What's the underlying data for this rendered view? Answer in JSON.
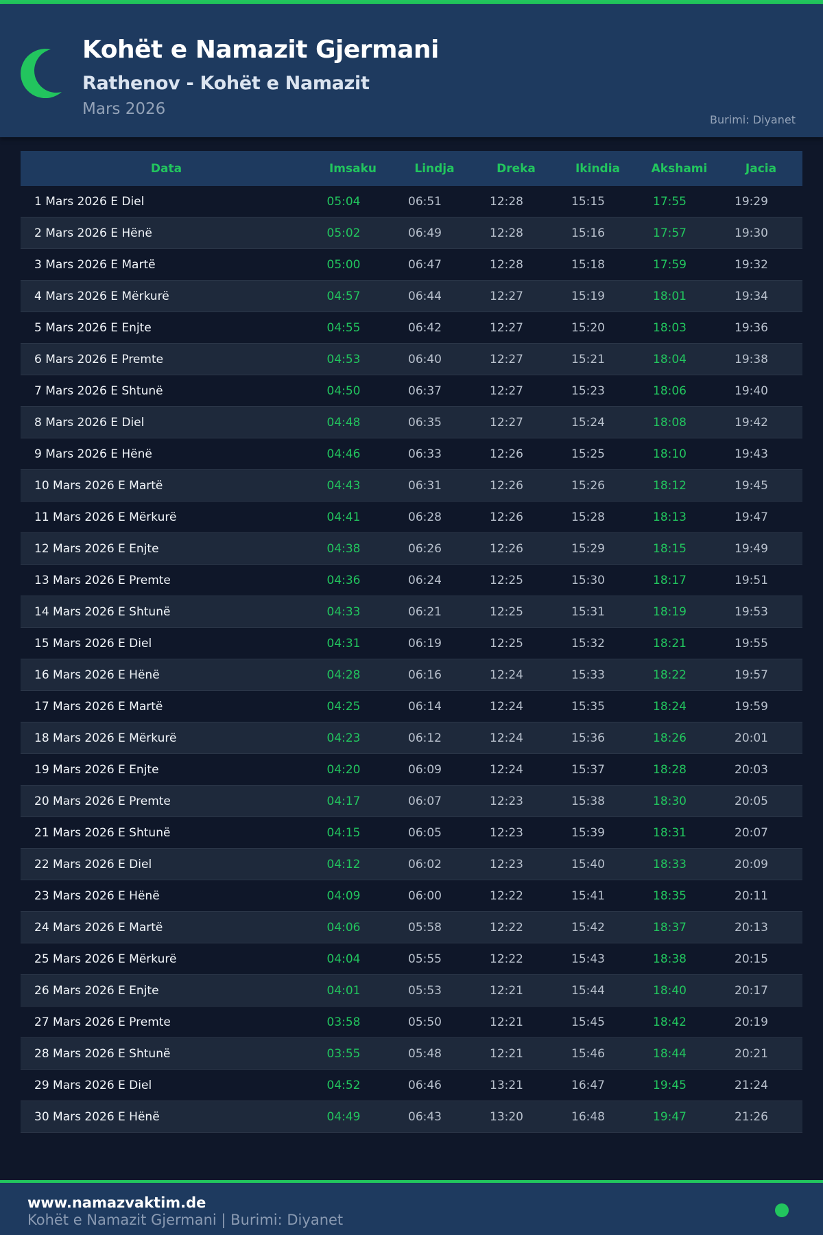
{
  "header": {
    "title": "Kohët e Namazit Gjermani",
    "subtitle": "Rathenov - Kohët e Namazit",
    "month": "Mars 2026",
    "source": "Burimi: Diyanet",
    "icon": "crescent-moon-icon"
  },
  "colors": {
    "accent": "#22c55e",
    "header_bg": "#1e3a5f",
    "page_bg": "#0f1729"
  },
  "table": {
    "columns": [
      "Data",
      "Imsaku",
      "Lindja",
      "Dreka",
      "Ikindia",
      "Akshami",
      "Jacia"
    ],
    "rows": [
      [
        "1 Mars 2026 E Diel",
        "05:04",
        "06:51",
        "12:28",
        "15:15",
        "17:55",
        "19:29"
      ],
      [
        "2 Mars 2026 E Hënë",
        "05:02",
        "06:49",
        "12:28",
        "15:16",
        "17:57",
        "19:30"
      ],
      [
        "3 Mars 2026 E Martë",
        "05:00",
        "06:47",
        "12:28",
        "15:18",
        "17:59",
        "19:32"
      ],
      [
        "4 Mars 2026 E Mërkurë",
        "04:57",
        "06:44",
        "12:27",
        "15:19",
        "18:01",
        "19:34"
      ],
      [
        "5 Mars 2026 E Enjte",
        "04:55",
        "06:42",
        "12:27",
        "15:20",
        "18:03",
        "19:36"
      ],
      [
        "6 Mars 2026 E Premte",
        "04:53",
        "06:40",
        "12:27",
        "15:21",
        "18:04",
        "19:38"
      ],
      [
        "7 Mars 2026 E Shtunë",
        "04:50",
        "06:37",
        "12:27",
        "15:23",
        "18:06",
        "19:40"
      ],
      [
        "8 Mars 2026 E Diel",
        "04:48",
        "06:35",
        "12:27",
        "15:24",
        "18:08",
        "19:42"
      ],
      [
        "9 Mars 2026 E Hënë",
        "04:46",
        "06:33",
        "12:26",
        "15:25",
        "18:10",
        "19:43"
      ],
      [
        "10 Mars 2026 E Martë",
        "04:43",
        "06:31",
        "12:26",
        "15:26",
        "18:12",
        "19:45"
      ],
      [
        "11 Mars 2026 E Mërkurë",
        "04:41",
        "06:28",
        "12:26",
        "15:28",
        "18:13",
        "19:47"
      ],
      [
        "12 Mars 2026 E Enjte",
        "04:38",
        "06:26",
        "12:26",
        "15:29",
        "18:15",
        "19:49"
      ],
      [
        "13 Mars 2026 E Premte",
        "04:36",
        "06:24",
        "12:25",
        "15:30",
        "18:17",
        "19:51"
      ],
      [
        "14 Mars 2026 E Shtunë",
        "04:33",
        "06:21",
        "12:25",
        "15:31",
        "18:19",
        "19:53"
      ],
      [
        "15 Mars 2026 E Diel",
        "04:31",
        "06:19",
        "12:25",
        "15:32",
        "18:21",
        "19:55"
      ],
      [
        "16 Mars 2026 E Hënë",
        "04:28",
        "06:16",
        "12:24",
        "15:33",
        "18:22",
        "19:57"
      ],
      [
        "17 Mars 2026 E Martë",
        "04:25",
        "06:14",
        "12:24",
        "15:35",
        "18:24",
        "19:59"
      ],
      [
        "18 Mars 2026 E Mërkurë",
        "04:23",
        "06:12",
        "12:24",
        "15:36",
        "18:26",
        "20:01"
      ],
      [
        "19 Mars 2026 E Enjte",
        "04:20",
        "06:09",
        "12:24",
        "15:37",
        "18:28",
        "20:03"
      ],
      [
        "20 Mars 2026 E Premte",
        "04:17",
        "06:07",
        "12:23",
        "15:38",
        "18:30",
        "20:05"
      ],
      [
        "21 Mars 2026 E Shtunë",
        "04:15",
        "06:05",
        "12:23",
        "15:39",
        "18:31",
        "20:07"
      ],
      [
        "22 Mars 2026 E Diel",
        "04:12",
        "06:02",
        "12:23",
        "15:40",
        "18:33",
        "20:09"
      ],
      [
        "23 Mars 2026 E Hënë",
        "04:09",
        "06:00",
        "12:22",
        "15:41",
        "18:35",
        "20:11"
      ],
      [
        "24 Mars 2026 E Martë",
        "04:06",
        "05:58",
        "12:22",
        "15:42",
        "18:37",
        "20:13"
      ],
      [
        "25 Mars 2026 E Mërkurë",
        "04:04",
        "05:55",
        "12:22",
        "15:43",
        "18:38",
        "20:15"
      ],
      [
        "26 Mars 2026 E Enjte",
        "04:01",
        "05:53",
        "12:21",
        "15:44",
        "18:40",
        "20:17"
      ],
      [
        "27 Mars 2026 E Premte",
        "03:58",
        "05:50",
        "12:21",
        "15:45",
        "18:42",
        "20:19"
      ],
      [
        "28 Mars 2026 E Shtunë",
        "03:55",
        "05:48",
        "12:21",
        "15:46",
        "18:44",
        "20:21"
      ],
      [
        "29 Mars 2026 E Diel",
        "04:52",
        "06:46",
        "13:21",
        "16:47",
        "19:45",
        "21:24"
      ],
      [
        "30 Mars 2026 E Hënë",
        "04:49",
        "06:43",
        "13:20",
        "16:48",
        "19:47",
        "21:26"
      ]
    ]
  },
  "footer": {
    "site": "www.namazvaktim.de",
    "line": "Kohët e Namazit Gjermani | Burimi: Diyanet"
  }
}
